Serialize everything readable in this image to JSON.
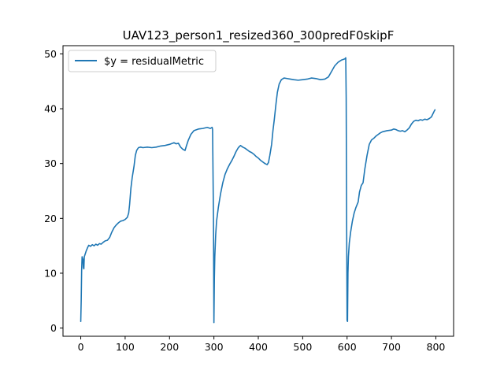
{
  "chart_data": {
    "type": "line",
    "title": "UAV123_person1_resized360_300predF0skipF",
    "xlabel": "",
    "ylabel": "",
    "xlim": [
      -40,
      840
    ],
    "ylim": [
      -1.5,
      51.5
    ],
    "xticks": [
      0,
      100,
      200,
      300,
      400,
      500,
      600,
      700,
      800
    ],
    "yticks": [
      0,
      10,
      20,
      30,
      40,
      50
    ],
    "grid": false,
    "legend_position": "top-left",
    "series": [
      {
        "name": "$y = residualMetric",
        "color": "#1f77b4",
        "points": [
          [
            0,
            1.2
          ],
          [
            1,
            5
          ],
          [
            2,
            10.5
          ],
          [
            3,
            13
          ],
          [
            5,
            12.5
          ],
          [
            6,
            11
          ],
          [
            7,
            10.8
          ],
          [
            8,
            13
          ],
          [
            10,
            13.5
          ],
          [
            12,
            14
          ],
          [
            15,
            14.6
          ],
          [
            18,
            15.1
          ],
          [
            22,
            14.9
          ],
          [
            26,
            15.2
          ],
          [
            30,
            15.0
          ],
          [
            34,
            15.3
          ],
          [
            38,
            15.1
          ],
          [
            42,
            15.4
          ],
          [
            46,
            15.3
          ],
          [
            50,
            15.6
          ],
          [
            55,
            15.9
          ],
          [
            60,
            16.0
          ],
          [
            65,
            16.5
          ],
          [
            70,
            17.5
          ],
          [
            75,
            18.3
          ],
          [
            80,
            18.8
          ],
          [
            85,
            19.2
          ],
          [
            90,
            19.5
          ],
          [
            95,
            19.6
          ],
          [
            100,
            19.8
          ],
          [
            105,
            20.2
          ],
          [
            108,
            21.0
          ],
          [
            110,
            22.5
          ],
          [
            113,
            25.5
          ],
          [
            116,
            27.5
          ],
          [
            120,
            29.5
          ],
          [
            123,
            31.5
          ],
          [
            126,
            32.4
          ],
          [
            130,
            32.9
          ],
          [
            135,
            33.0
          ],
          [
            140,
            32.9
          ],
          [
            150,
            33.0
          ],
          [
            160,
            32.9
          ],
          [
            170,
            33.0
          ],
          [
            180,
            33.2
          ],
          [
            190,
            33.3
          ],
          [
            200,
            33.5
          ],
          [
            210,
            33.8
          ],
          [
            215,
            33.6
          ],
          [
            220,
            33.7
          ],
          [
            225,
            33.0
          ],
          [
            230,
            32.6
          ],
          [
            235,
            32.4
          ],
          [
            238,
            33.2
          ],
          [
            242,
            34.2
          ],
          [
            248,
            35.3
          ],
          [
            255,
            36.0
          ],
          [
            265,
            36.3
          ],
          [
            275,
            36.4
          ],
          [
            285,
            36.6
          ],
          [
            292,
            36.4
          ],
          [
            296,
            36.6
          ],
          [
            297,
            36.2
          ],
          [
            299,
            20.0
          ],
          [
            300,
            1.0
          ],
          [
            301,
            9.0
          ],
          [
            302,
            13.0
          ],
          [
            304,
            17.0
          ],
          [
            306,
            19.5
          ],
          [
            310,
            22.0
          ],
          [
            315,
            24.5
          ],
          [
            320,
            26.5
          ],
          [
            325,
            28.0
          ],
          [
            330,
            29.0
          ],
          [
            335,
            29.8
          ],
          [
            340,
            30.5
          ],
          [
            345,
            31.3
          ],
          [
            350,
            32.2
          ],
          [
            355,
            32.9
          ],
          [
            360,
            33.3
          ],
          [
            365,
            33.0
          ],
          [
            370,
            32.8
          ],
          [
            375,
            32.5
          ],
          [
            380,
            32.2
          ],
          [
            385,
            32.0
          ],
          [
            390,
            31.7
          ],
          [
            395,
            31.3
          ],
          [
            400,
            31.0
          ],
          [
            405,
            30.6
          ],
          [
            410,
            30.3
          ],
          [
            415,
            30.0
          ],
          [
            420,
            29.8
          ],
          [
            423,
            30.2
          ],
          [
            426,
            31.5
          ],
          [
            430,
            33.5
          ],
          [
            433,
            36.0
          ],
          [
            436,
            38.0
          ],
          [
            440,
            41.0
          ],
          [
            443,
            43.0
          ],
          [
            447,
            44.5
          ],
          [
            452,
            45.3
          ],
          [
            458,
            45.6
          ],
          [
            465,
            45.5
          ],
          [
            472,
            45.4
          ],
          [
            480,
            45.3
          ],
          [
            490,
            45.2
          ],
          [
            500,
            45.3
          ],
          [
            510,
            45.4
          ],
          [
            520,
            45.6
          ],
          [
            530,
            45.5
          ],
          [
            540,
            45.3
          ],
          [
            550,
            45.4
          ],
          [
            558,
            45.8
          ],
          [
            565,
            46.8
          ],
          [
            572,
            47.8
          ],
          [
            580,
            48.5
          ],
          [
            588,
            48.9
          ],
          [
            595,
            49.1
          ],
          [
            597,
            49.3
          ],
          [
            598,
            42.0
          ],
          [
            599,
            20.0
          ],
          [
            600,
            1.4
          ],
          [
            601,
            1.2
          ],
          [
            602,
            10.0
          ],
          [
            603,
            13.0
          ],
          [
            605,
            15.5
          ],
          [
            608,
            17.5
          ],
          [
            612,
            19.5
          ],
          [
            616,
            21.0
          ],
          [
            620,
            22.0
          ],
          [
            625,
            23.0
          ],
          [
            628,
            24.8
          ],
          [
            632,
            26.0
          ],
          [
            636,
            26.5
          ],
          [
            640,
            29.0
          ],
          [
            645,
            31.5
          ],
          [
            650,
            33.5
          ],
          [
            655,
            34.3
          ],
          [
            660,
            34.6
          ],
          [
            665,
            35.0
          ],
          [
            670,
            35.3
          ],
          [
            675,
            35.6
          ],
          [
            680,
            35.8
          ],
          [
            690,
            36.0
          ],
          [
            700,
            36.1
          ],
          [
            705,
            36.3
          ],
          [
            710,
            36.2
          ],
          [
            715,
            36.0
          ],
          [
            720,
            35.9
          ],
          [
            725,
            36.0
          ],
          [
            730,
            35.8
          ],
          [
            735,
            36.1
          ],
          [
            740,
            36.5
          ],
          [
            745,
            37.2
          ],
          [
            750,
            37.7
          ],
          [
            755,
            37.9
          ],
          [
            760,
            37.8
          ],
          [
            765,
            38.0
          ],
          [
            770,
            37.9
          ],
          [
            775,
            38.1
          ],
          [
            780,
            38.0
          ],
          [
            785,
            38.2
          ],
          [
            790,
            38.5
          ],
          [
            793,
            39.0
          ],
          [
            796,
            39.5
          ],
          [
            798,
            39.8
          ]
        ]
      }
    ]
  }
}
